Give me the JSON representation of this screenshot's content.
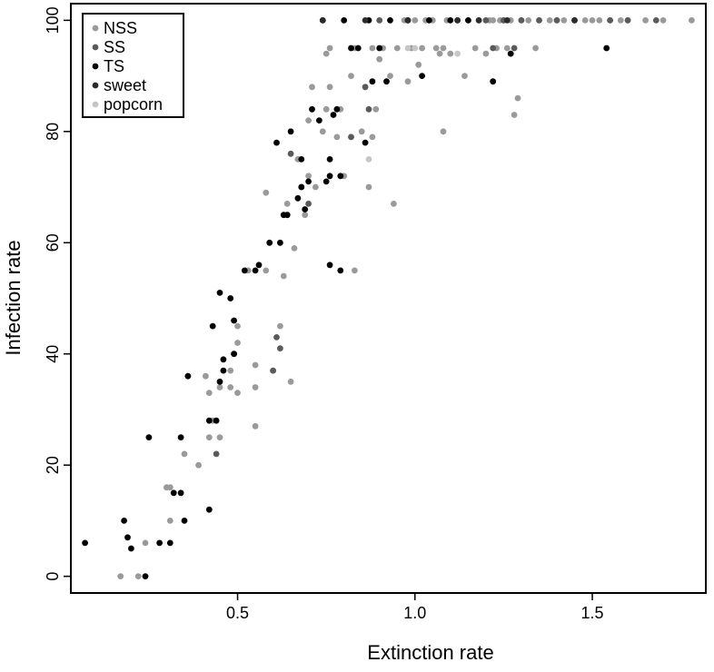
{
  "chart_data": {
    "type": "scatter",
    "xlabel": "Extinction rate",
    "ylabel": "Infection rate",
    "xlim": [
      0.03,
      1.82
    ],
    "ylim": [
      -3,
      103
    ],
    "xticks": [
      0.5,
      1.0,
      1.5
    ],
    "xtick_labels": [
      "0.5",
      "1.0",
      "1.5"
    ],
    "yticks": [
      0,
      20,
      40,
      60,
      80,
      100
    ],
    "ytick_labels": [
      "0",
      "20",
      "40",
      "60",
      "80",
      "100"
    ],
    "grid": false,
    "legend_position": "top-left",
    "series": [
      {
        "name": "NSS",
        "color": "#9a9a9a",
        "points": [
          [
            0.17,
            0
          ],
          [
            0.22,
            0
          ],
          [
            0.24,
            6
          ],
          [
            0.31,
            10
          ],
          [
            0.3,
            16
          ],
          [
            0.31,
            16
          ],
          [
            0.35,
            22
          ],
          [
            0.39,
            20
          ],
          [
            0.41,
            36
          ],
          [
            0.42,
            25
          ],
          [
            0.42,
            33
          ],
          [
            0.43,
            28
          ],
          [
            0.45,
            25
          ],
          [
            0.45,
            34
          ],
          [
            0.48,
            34
          ],
          [
            0.48,
            37
          ],
          [
            0.49,
            40
          ],
          [
            0.5,
            33
          ],
          [
            0.5,
            42
          ],
          [
            0.5,
            45
          ],
          [
            0.53,
            55
          ],
          [
            0.55,
            27
          ],
          [
            0.55,
            34
          ],
          [
            0.55,
            38
          ],
          [
            0.58,
            55
          ],
          [
            0.58,
            69
          ],
          [
            0.6,
            37
          ],
          [
            0.62,
            45
          ],
          [
            0.63,
            54
          ],
          [
            0.64,
            67
          ],
          [
            0.65,
            35
          ],
          [
            0.66,
            59
          ],
          [
            0.67,
            75
          ],
          [
            0.69,
            65
          ],
          [
            0.7,
            72
          ],
          [
            0.7,
            82
          ],
          [
            0.71,
            88
          ],
          [
            0.72,
            70
          ],
          [
            0.74,
            80
          ],
          [
            0.75,
            84
          ],
          [
            0.76,
            88
          ],
          [
            0.75,
            94
          ],
          [
            0.76,
            95
          ],
          [
            0.78,
            79
          ],
          [
            0.79,
            84
          ],
          [
            0.8,
            72
          ],
          [
            0.82,
            79
          ],
          [
            0.82,
            90
          ],
          [
            0.83,
            95
          ],
          [
            0.83,
            55
          ],
          [
            0.85,
            80
          ],
          [
            0.86,
            88
          ],
          [
            0.87,
            70
          ],
          [
            0.88,
            79
          ],
          [
            0.88,
            95
          ],
          [
            0.89,
            84
          ],
          [
            0.9,
            93
          ],
          [
            0.91,
            95
          ],
          [
            0.93,
            90
          ],
          [
            0.94,
            67
          ],
          [
            0.95,
            95
          ],
          [
            0.97,
            100
          ],
          [
            0.98,
            89
          ],
          [
            0.99,
            95
          ],
          [
            1.0,
            100
          ],
          [
            1.01,
            92
          ],
          [
            1.02,
            95
          ],
          [
            1.03,
            100
          ],
          [
            1.05,
            100
          ],
          [
            1.06,
            95
          ],
          [
            1.07,
            94
          ],
          [
            1.08,
            80
          ],
          [
            1.08,
            95
          ],
          [
            1.09,
            100
          ],
          [
            1.1,
            94
          ],
          [
            1.12,
            100
          ],
          [
            1.14,
            90
          ],
          [
            1.15,
            100
          ],
          [
            1.17,
            95
          ],
          [
            1.18,
            100
          ],
          [
            1.2,
            94
          ],
          [
            1.21,
            100
          ],
          [
            1.22,
            100
          ],
          [
            1.23,
            95
          ],
          [
            1.24,
            100
          ],
          [
            1.25,
            100
          ],
          [
            1.26,
            95
          ],
          [
            1.27,
            100
          ],
          [
            1.28,
            83
          ],
          [
            1.29,
            86
          ],
          [
            1.3,
            100
          ],
          [
            1.32,
            100
          ],
          [
            1.34,
            95
          ],
          [
            1.35,
            100
          ],
          [
            1.38,
            100
          ],
          [
            1.4,
            100
          ],
          [
            1.42,
            100
          ],
          [
            1.45,
            100
          ],
          [
            1.48,
            100
          ],
          [
            1.5,
            100
          ],
          [
            1.52,
            100
          ],
          [
            1.55,
            100
          ],
          [
            1.58,
            100
          ],
          [
            1.6,
            100
          ],
          [
            1.65,
            100
          ],
          [
            1.7,
            100
          ],
          [
            1.78,
            100
          ]
        ]
      },
      {
        "name": "SS",
        "color": "#5a5a5a",
        "points": [
          [
            0.44,
            22
          ],
          [
            0.6,
            37
          ],
          [
            0.61,
            43
          ],
          [
            0.62,
            41
          ],
          [
            0.64,
            65
          ],
          [
            0.65,
            76
          ],
          [
            0.68,
            70
          ],
          [
            0.7,
            67
          ],
          [
            0.82,
            79
          ],
          [
            0.86,
            88
          ],
          [
            0.87,
            84
          ],
          [
            0.9,
            100
          ],
          [
            1.12,
            100
          ],
          [
            1.2,
            100
          ],
          [
            1.22,
            95
          ],
          [
            1.25,
            100
          ],
          [
            1.28,
            95
          ],
          [
            1.3,
            100
          ],
          [
            1.35,
            100
          ],
          [
            1.4,
            100
          ],
          [
            1.45,
            100
          ],
          [
            1.55,
            100
          ],
          [
            1.6,
            100
          ],
          [
            1.68,
            100
          ]
        ]
      },
      {
        "name": "TS",
        "color": "#000000",
        "points": [
          [
            0.07,
            6
          ],
          [
            0.18,
            10
          ],
          [
            0.19,
            7
          ],
          [
            0.2,
            5
          ],
          [
            0.24,
            0
          ],
          [
            0.25,
            25
          ],
          [
            0.28,
            6
          ],
          [
            0.31,
            6
          ],
          [
            0.32,
            15
          ],
          [
            0.34,
            25
          ],
          [
            0.34,
            15
          ],
          [
            0.35,
            10
          ],
          [
            0.36,
            36
          ],
          [
            0.42,
            12
          ],
          [
            0.42,
            28
          ],
          [
            0.43,
            45
          ],
          [
            0.44,
            28
          ],
          [
            0.45,
            35
          ],
          [
            0.45,
            51
          ],
          [
            0.46,
            39
          ],
          [
            0.46,
            37
          ],
          [
            0.48,
            50
          ],
          [
            0.49,
            40
          ],
          [
            0.49,
            46
          ],
          [
            0.52,
            55
          ],
          [
            0.55,
            55
          ],
          [
            0.56,
            56
          ],
          [
            0.59,
            60
          ],
          [
            0.61,
            78
          ],
          [
            0.62,
            60
          ],
          [
            0.63,
            65
          ],
          [
            0.64,
            65
          ],
          [
            0.65,
            80
          ],
          [
            0.67,
            68
          ],
          [
            0.68,
            75
          ],
          [
            0.68,
            70
          ],
          [
            0.69,
            66
          ],
          [
            0.7,
            71
          ],
          [
            0.71,
            84
          ],
          [
            0.73,
            82
          ],
          [
            0.74,
            100
          ],
          [
            0.75,
            71
          ],
          [
            0.76,
            75
          ],
          [
            0.76,
            72
          ],
          [
            0.76,
            56
          ],
          [
            0.77,
            83
          ],
          [
            0.78,
            84
          ],
          [
            0.79,
            55
          ],
          [
            0.79,
            72
          ],
          [
            0.8,
            100
          ],
          [
            0.82,
            95
          ],
          [
            0.84,
            95
          ],
          [
            0.86,
            78
          ],
          [
            0.87,
            100
          ],
          [
            0.88,
            89
          ],
          [
            0.9,
            95
          ],
          [
            0.92,
            89
          ],
          [
            0.93,
            100
          ],
          [
            0.98,
            100
          ],
          [
            1.02,
            90
          ],
          [
            1.04,
            100
          ],
          [
            1.1,
            100
          ],
          [
            1.15,
            100
          ],
          [
            1.22,
            89
          ],
          [
            1.27,
            94
          ],
          [
            1.54,
            95
          ]
        ]
      },
      {
        "name": "sweet",
        "color": "#2b2b2b",
        "points": [
          [
            0.74,
            100
          ],
          [
            0.86,
            100
          ],
          [
            0.98,
            100
          ],
          [
            1.12,
            100
          ],
          [
            1.18,
            100
          ],
          [
            1.26,
            100
          ],
          [
            1.45,
            100
          ]
        ]
      },
      {
        "name": "popcorn",
        "color": "#c6c6c6",
        "points": [
          [
            0.87,
            75
          ],
          [
            0.98,
            95
          ],
          [
            1.0,
            95
          ],
          [
            1.12,
            94
          ]
        ]
      }
    ]
  }
}
